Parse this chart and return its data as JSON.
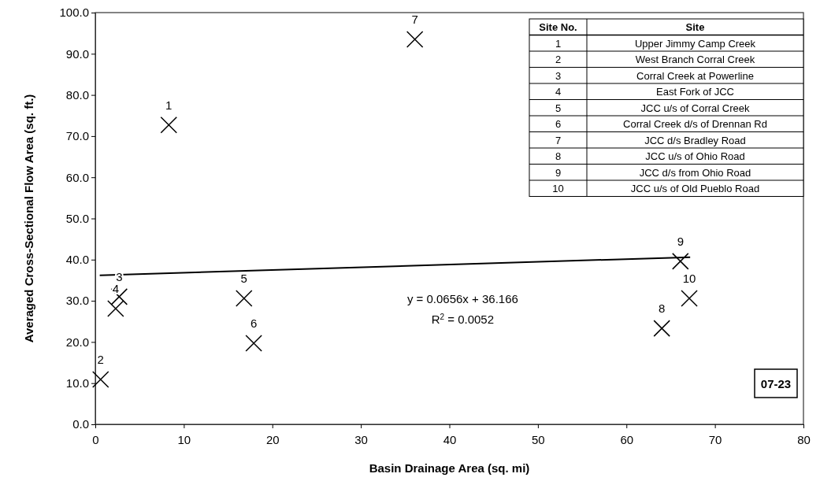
{
  "chart_data": {
    "type": "scatter",
    "xlabel": "Basin Drainage Area (sq. mi)",
    "ylabel": "Averaged Cross-Sectional Flow Area (sq. ft.)",
    "xlim": [
      0,
      80
    ],
    "xticks": [
      0,
      10,
      20,
      30,
      40,
      50,
      60,
      70,
      80
    ],
    "ylim": [
      0,
      100
    ],
    "yticks": [
      {
        "value": 0,
        "label": "0.0"
      },
      {
        "value": 10,
        "label": "10.0"
      },
      {
        "value": 20,
        "label": "20.0"
      },
      {
        "value": 30,
        "label": "30.0"
      },
      {
        "value": 40,
        "label": "40.0"
      },
      {
        "value": 50,
        "label": "50.0"
      },
      {
        "value": 60,
        "label": "60.0"
      },
      {
        "value": 70,
        "label": "70.0"
      },
      {
        "value": 80,
        "label": "80.0"
      },
      {
        "value": 90,
        "label": "90.0"
      },
      {
        "value": 100,
        "label": "100.0"
      }
    ],
    "grid": false,
    "marker": "cross",
    "series": [
      {
        "color": "#000000",
        "x": [
          8.3,
          0.6,
          2.7,
          2.3,
          16.8,
          17.9,
          36.1,
          64.0,
          66.1,
          67.1
        ],
        "values": [
          72.7,
          10.9,
          31.0,
          28.1,
          30.6,
          19.7,
          93.5,
          23.3,
          39.6,
          30.6
        ]
      },
      {
        "type": "line",
        "color": "#000000",
        "marker": "none",
        "line_style": "solid",
        "x": [
          0.5,
          67.2
        ],
        "values": [
          36.2,
          40.6
        ]
      }
    ],
    "annotations": [
      "y = 0.0656x + 36.166",
      "R$^{2}$ = 0.0052",
      "07-23",
      "Site No.",
      "Site",
      "1",
      "Upper Jimmy Camp Creek",
      "2",
      "West Branch Corral Creek",
      "3",
      "Corral Creek at Powerline",
      "4",
      "East Fork of JCC",
      "5",
      "JCC u/s of Corral Creek",
      "6",
      "Corral Creek d/s of Drennan Rd",
      "7",
      "JCC d/s Bradley Road",
      "8",
      "JCC u/s of Ohio Road",
      "9",
      "JCC d/s from Ohio Road",
      "10",
      "JCC u/s of  Old Pueblo Road",
      {
        "text": "1",
        "x": 8.3,
        "y": 72.7
      },
      {
        "text": "2",
        "x": 0.6,
        "y": 10.9
      },
      {
        "text": "3",
        "x": 2.7,
        "y": 31.0
      },
      {
        "text": "4",
        "x": 2.3,
        "y": 28.1
      },
      {
        "text": "5",
        "x": 16.8,
        "y": 30.6
      },
      {
        "text": "6",
        "x": 17.9,
        "y": 19.7
      },
      {
        "text": "7",
        "x": 36.1,
        "y": 93.5
      },
      {
        "text": "8",
        "x": 64.0,
        "y": 23.3
      },
      {
        "text": "9",
        "x": 66.1,
        "y": 39.6
      },
      {
        "text": "10",
        "x": 67.1,
        "y": 30.6
      }
    ]
  }
}
